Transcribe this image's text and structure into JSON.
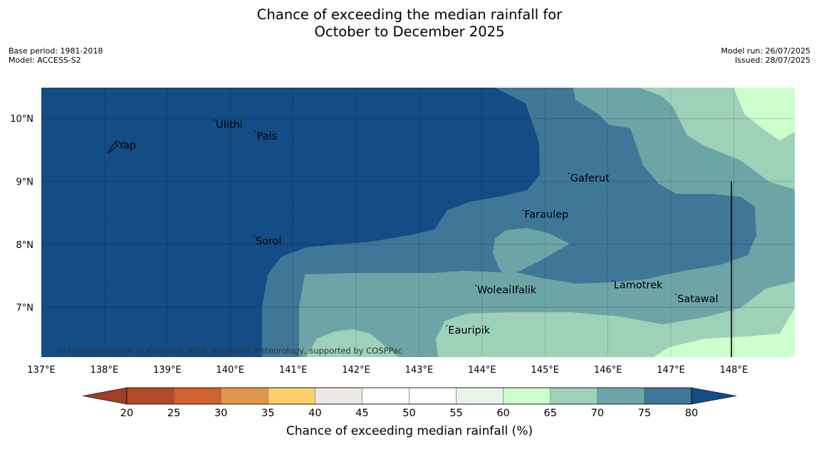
{
  "title": {
    "line1": "Chance of exceeding the median rainfall for",
    "line2": "October to December 2025"
  },
  "meta_left": {
    "base_period": "Base period: 1981-2018",
    "model": "Model: ACCESS-S2"
  },
  "meta_right": {
    "model_run": "Model run: 26/07/2025",
    "issued": "Issued: 28/07/2025"
  },
  "map": {
    "lon_range": [
      137,
      149
    ],
    "lat_range": [
      6.2,
      10.5
    ],
    "lon_ticks": [
      "137°E",
      "138°E",
      "139°E",
      "140°E",
      "141°E",
      "142°E",
      "143°E",
      "144°E",
      "145°E",
      "146°E",
      "147°E",
      "148°E"
    ],
    "lat_ticks": [
      "10°N",
      "9°N",
      "8°N",
      "7°N"
    ],
    "places": [
      {
        "name": "Yap",
        "lon": 138.2,
        "lat": 9.52
      },
      {
        "name": "Ulithi",
        "lon": 139.75,
        "lat": 9.85
      },
      {
        "name": "Pais",
        "lon": 140.4,
        "lat": 9.67
      },
      {
        "name": "Gaferut",
        "lon": 145.38,
        "lat": 9.0
      },
      {
        "name": "Faraulep",
        "lon": 144.65,
        "lat": 8.42
      },
      {
        "name": "Sorol",
        "lon": 140.38,
        "lat": 8.0
      },
      {
        "name": "Lamotrek",
        "lon": 146.07,
        "lat": 7.3
      },
      {
        "name": "Woleai",
        "lon": 143.9,
        "lat": 7.22
      },
      {
        "name": "Ifalik",
        "lon": 144.45,
        "lat": 7.22
      },
      {
        "name": "Satawal",
        "lon": 147.08,
        "lat": 7.08
      },
      {
        "name": "Eauripik",
        "lon": 143.44,
        "lat": 6.58
      }
    ],
    "credit": "© Commonwealth of Australia 2025, Bureau of Meteorology, supported by COSPPac"
  },
  "colorbar": {
    "ticks": [
      "20",
      "25",
      "30",
      "35",
      "40",
      "45",
      "50",
      "55",
      "60",
      "65",
      "70",
      "75",
      "80"
    ],
    "colors": [
      "#b34a27",
      "#cf6132",
      "#e29649",
      "#fdcf6b",
      "#ece8e4",
      "#ffffff",
      "#ffffff",
      "#e8f4e8",
      "#ccffcc",
      "#9dd1b8",
      "#6da5a7",
      "#3f7798"
    ],
    "under_color": "#a13e24",
    "over_color": "#144c85",
    "label": "Chance of exceeding median rainfall (%)"
  }
}
